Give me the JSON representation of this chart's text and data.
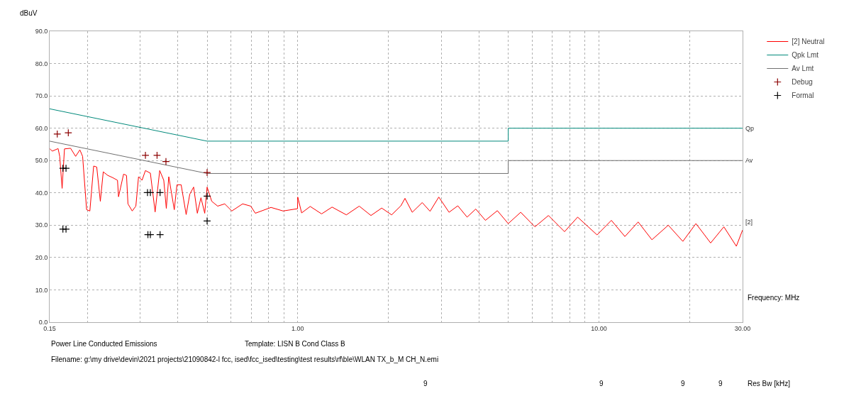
{
  "chart_data": {
    "type": "line",
    "ylabel": "dBuV",
    "xlabel": "Frequency: MHz",
    "log": "x",
    "xlim": [
      0.15,
      30
    ],
    "xticks": [
      {
        "value": 0.15,
        "label": "0.15"
      },
      {
        "value": 0.2,
        "label": null
      },
      {
        "value": 0.3,
        "label": null
      },
      {
        "value": 0.4,
        "label": null
      },
      {
        "value": 0.5,
        "label": null
      },
      {
        "value": 0.6,
        "label": null
      },
      {
        "value": 0.7,
        "label": null
      },
      {
        "value": 0.8,
        "label": null
      },
      {
        "value": 0.9,
        "label": null
      },
      {
        "value": 1,
        "label": "1.00"
      },
      {
        "value": 2,
        "label": null
      },
      {
        "value": 3,
        "label": null
      },
      {
        "value": 4,
        "label": null
      },
      {
        "value": 5,
        "label": null
      },
      {
        "value": 6,
        "label": null
      },
      {
        "value": 7,
        "label": null
      },
      {
        "value": 8,
        "label": null
      },
      {
        "value": 9,
        "label": null
      },
      {
        "value": 10,
        "label": "10.00"
      },
      {
        "value": 20,
        "label": null
      },
      {
        "value": 30,
        "label": "30.00"
      }
    ],
    "ylim": [
      0,
      90
    ],
    "yticks": [
      {
        "value": 0,
        "label": "0.0"
      },
      {
        "value": 10,
        "label": "10.0"
      },
      {
        "value": 20,
        "label": "20.0"
      },
      {
        "value": 30,
        "label": "30.0"
      },
      {
        "value": 40,
        "label": "40.0"
      },
      {
        "value": 50,
        "label": "50.0"
      },
      {
        "value": 60,
        "label": "60.0"
      },
      {
        "value": 70,
        "label": "70.0"
      },
      {
        "value": 80,
        "label": "80.0"
      },
      {
        "value": 90,
        "label": "90.0"
      }
    ],
    "grid": true,
    "legend": "top right",
    "line_style": "solid",
    "series": [
      {
        "name": "[2] Neutral",
        "color": "#ff0000",
        "x": [
          0.15,
          0.153,
          0.16,
          0.162,
          0.165,
          0.168,
          0.176,
          0.183,
          0.189,
          0.193,
          0.199,
          0.204,
          0.21,
          0.215,
          0.221,
          0.226,
          0.234,
          0.243,
          0.252,
          0.254,
          0.264,
          0.27,
          0.273,
          0.282,
          0.29,
          0.296,
          0.304,
          0.312,
          0.324,
          0.336,
          0.348,
          0.359,
          0.366,
          0.373,
          0.389,
          0.397,
          0.41,
          0.426,
          0.438,
          0.451,
          0.464,
          0.477,
          0.491,
          0.5,
          0.518,
          0.542,
          0.572,
          0.604,
          0.656,
          0.698,
          0.723,
          0.815,
          0.894,
          0.998,
          1.0,
          1.03,
          1.1,
          1.2,
          1.3,
          1.45,
          1.6,
          1.75,
          1.9,
          2.05,
          2.2,
          2.27,
          2.4,
          2.59,
          2.75,
          2.94,
          3.18,
          3.4,
          3.65,
          3.9,
          4.2,
          4.6,
          5.0,
          5.5,
          6.13,
          6.8,
          7.69,
          8.5,
          9.86,
          11,
          12.2,
          13.5,
          15,
          17,
          19,
          21,
          23.5,
          26,
          28.6,
          30
        ],
        "values": [
          53.7,
          52.9,
          53.7,
          51.3,
          41.4,
          53.6,
          53.8,
          51.3,
          53.3,
          51.3,
          34.8,
          34.4,
          48.3,
          48.0,
          37.4,
          46.5,
          45.4,
          44.7,
          43.9,
          38.8,
          45.8,
          45.4,
          36.6,
          34.4,
          35.9,
          45.0,
          43.9,
          46.9,
          46.1,
          34.1,
          46.9,
          43.9,
          35.2,
          45.0,
          34.8,
          42.5,
          42.5,
          33.3,
          39.6,
          41.8,
          33.7,
          38.5,
          33.7,
          41.8,
          37.4,
          35.9,
          36.6,
          34.4,
          36.6,
          35.9,
          33.7,
          35.5,
          34.4,
          35.1,
          38.7,
          33.8,
          35.8,
          33.5,
          35.6,
          33.2,
          35.9,
          33.0,
          35.3,
          33.2,
          36.0,
          38.3,
          34.0,
          37.0,
          34.3,
          38.7,
          34.0,
          36.0,
          32.5,
          35.0,
          31.5,
          34.5,
          30.5,
          34.0,
          29.5,
          33.0,
          28.0,
          32.5,
          27.0,
          31.5,
          26.5,
          31.0,
          25.5,
          30.0,
          25.0,
          30.5,
          24.5,
          29.5,
          23.5,
          28.5
        ]
      },
      {
        "name": "Qpk Lmt",
        "color": "#00897b",
        "x": [
          0.15,
          0.5,
          5,
          5,
          30
        ],
        "values": [
          66,
          56,
          56,
          60,
          60
        ]
      },
      {
        "name": "Av Lmt",
        "color": "#707070",
        "x": [
          0.15,
          0.5,
          5,
          5,
          30
        ],
        "values": [
          56,
          46,
          46,
          50,
          50
        ]
      },
      {
        "name": "Debug",
        "type": "scatter",
        "marker": "cross",
        "color": "#8b0000",
        "x": [
          0.159,
          0.173,
          0.312,
          0.341,
          0.365,
          0.5
        ],
        "values": [
          58.2,
          58.6,
          51.6,
          51.6,
          49.7,
          46.3
        ]
      },
      {
        "name": "Formal",
        "type": "scatter",
        "marker": "cross",
        "color": "#000000",
        "x": [
          0.166,
          0.17,
          0.166,
          0.17,
          0.317,
          0.324,
          0.349,
          0.318,
          0.324,
          0.349,
          0.5,
          0.5
        ],
        "values": [
          47.6,
          47.6,
          28.8,
          28.8,
          40.1,
          40.1,
          40.1,
          27.1,
          27.1,
          27.1,
          39.0,
          31.3
        ]
      }
    ],
    "annotations": [
      "Qp",
      "Av",
      "[2]",
      "Power Line Conducted Emissions",
      "Template: LISN B Cond Class B",
      "Filename: g:\\my drive\\devin\\2021 projects\\21090842-l fcc, ised\\fcc_ised\\testing\\test results\\rf\\ble\\WLAN TX_b_M CH_N.emi",
      "9",
      "9",
      "9",
      "9",
      "Res Bw [kHz]"
    ]
  }
}
